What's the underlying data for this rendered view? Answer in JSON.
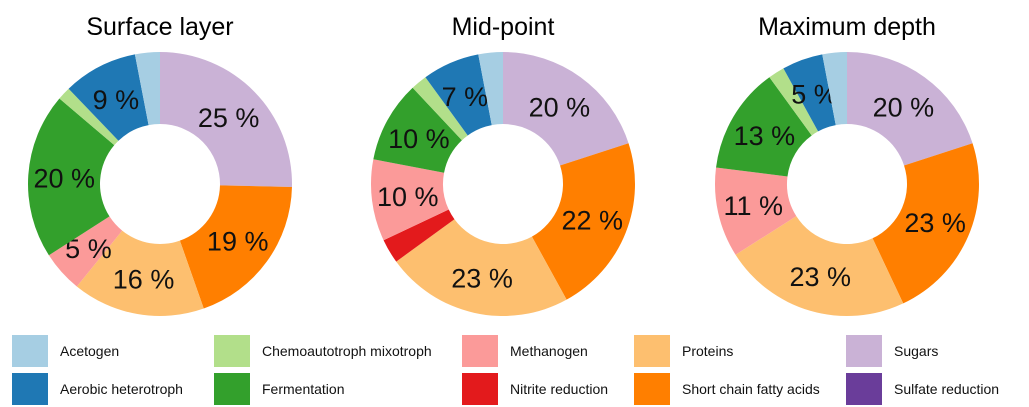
{
  "chart_data": [
    {
      "type": "donut",
      "title": "Surface layer",
      "segments": [
        {
          "category": "Sugars",
          "value": 25,
          "label": "25 %"
        },
        {
          "category": "Short chain fatty acids",
          "value": 19,
          "label": "19 %"
        },
        {
          "category": "Proteins",
          "value": 16,
          "label": "16 %"
        },
        {
          "category": "Methanogen",
          "value": 5,
          "label": "5 %"
        },
        {
          "category": "Fermentation",
          "value": 20,
          "label": "20 %"
        },
        {
          "category": "Chemoautotroph mixotroph",
          "value": 1.6,
          "label": ""
        },
        {
          "category": "Aerobic heterotroph",
          "value": 9,
          "label": "9 %"
        },
        {
          "category": "Acetogen",
          "value": 3,
          "label": ""
        }
      ]
    },
    {
      "type": "donut",
      "title": "Mid-point",
      "segments": [
        {
          "category": "Sugars",
          "value": 20,
          "label": "20 %"
        },
        {
          "category": "Short chain fatty acids",
          "value": 22,
          "label": "22 %"
        },
        {
          "category": "Proteins",
          "value": 23,
          "label": "23 %"
        },
        {
          "category": "Nitrite reduction",
          "value": 3,
          "label": ""
        },
        {
          "category": "Methanogen",
          "value": 10,
          "label": "10 %"
        },
        {
          "category": "Fermentation",
          "value": 10,
          "label": "10 %"
        },
        {
          "category": "Chemoautotroph mixotroph",
          "value": 2,
          "label": ""
        },
        {
          "category": "Aerobic heterotroph",
          "value": 7,
          "label": "7 %"
        },
        {
          "category": "Acetogen",
          "value": 3,
          "label": ""
        }
      ]
    },
    {
      "type": "donut",
      "title": "Maximum depth",
      "segments": [
        {
          "category": "Sugars",
          "value": 20,
          "label": "20 %"
        },
        {
          "category": "Short chain fatty acids",
          "value": 23,
          "label": "23 %"
        },
        {
          "category": "Proteins",
          "value": 23,
          "label": "23 %"
        },
        {
          "category": "Methanogen",
          "value": 11,
          "label": "11 %"
        },
        {
          "category": "Fermentation",
          "value": 13,
          "label": "13 %"
        },
        {
          "category": "Chemoautotroph mixotroph",
          "value": 2,
          "label": ""
        },
        {
          "category": "Aerobic heterotroph",
          "value": 5,
          "label": "5 %"
        },
        {
          "category": "Acetogen",
          "value": 3,
          "label": ""
        }
      ]
    }
  ],
  "legend": [
    {
      "label": "Acetogen",
      "color": "#a6cee3"
    },
    {
      "label": "Aerobic heterotroph",
      "color": "#1f78b4"
    },
    {
      "label": "Chemoautotroph mixotroph",
      "color": "#b2df8a"
    },
    {
      "label": "Fermentation",
      "color": "#33a02c"
    },
    {
      "label": "Methanogen",
      "color": "#fb9a99"
    },
    {
      "label": "Nitrite reduction",
      "color": "#e31a1c"
    },
    {
      "label": "Proteins",
      "color": "#fdbf6f"
    },
    {
      "label": "Short chain fatty acids",
      "color": "#ff7f00"
    },
    {
      "label": "Sugars",
      "color": "#cab2d6"
    },
    {
      "label": "Sulfate reduction",
      "color": "#6a3d9a"
    }
  ]
}
